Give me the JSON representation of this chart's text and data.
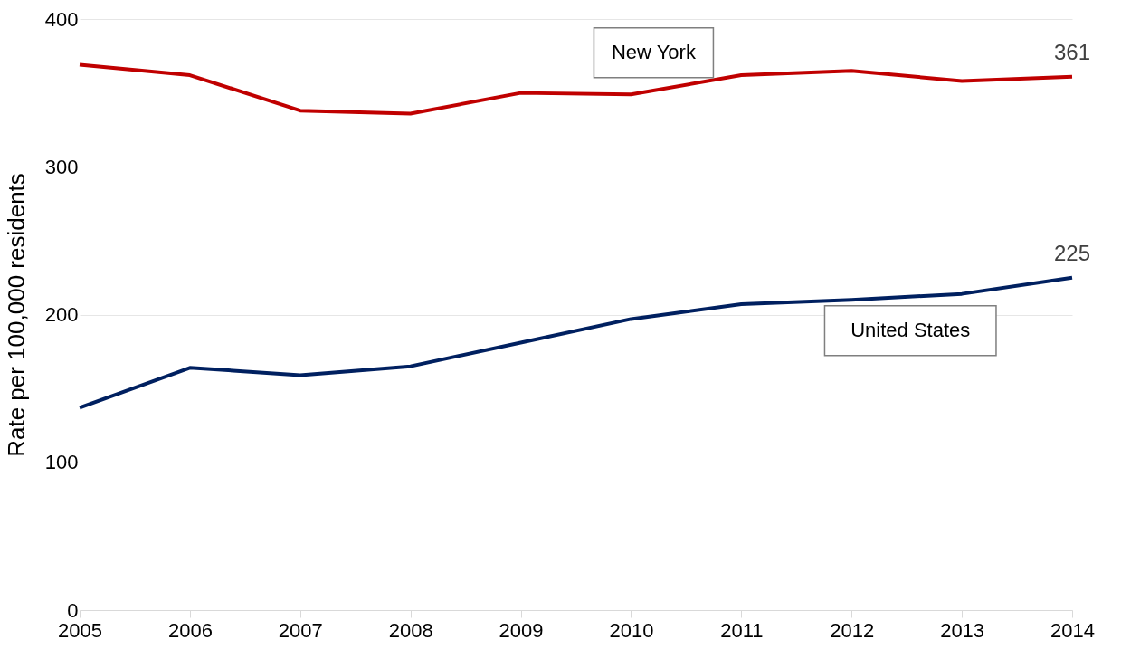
{
  "chart_data": {
    "type": "line",
    "ylabel": "Rate per 100,000 residents",
    "categories": [
      "2005",
      "2006",
      "2007",
      "2008",
      "2009",
      "2010",
      "2011",
      "2012",
      "2013",
      "2014"
    ],
    "series": [
      {
        "name": "New York",
        "color": "#c00000",
        "values": [
          369,
          362,
          338,
          336,
          350,
          349,
          362,
          365,
          358,
          361
        ],
        "value_labels": [
          null,
          null,
          null,
          null,
          null,
          null,
          null,
          null,
          null,
          "361"
        ]
      },
      {
        "name": "United States",
        "color": "#002060",
        "values": [
          137,
          164,
          159,
          165,
          181,
          197,
          207,
          210,
          214,
          225
        ],
        "value_labels": [
          null,
          null,
          null,
          null,
          null,
          null,
          null,
          null,
          null,
          "225"
        ]
      }
    ],
    "ylim": [
      0,
      400
    ],
    "yticks": [
      0,
      100,
      200,
      300,
      400
    ],
    "grid": "y",
    "marker": "none",
    "line_style": "solid"
  }
}
